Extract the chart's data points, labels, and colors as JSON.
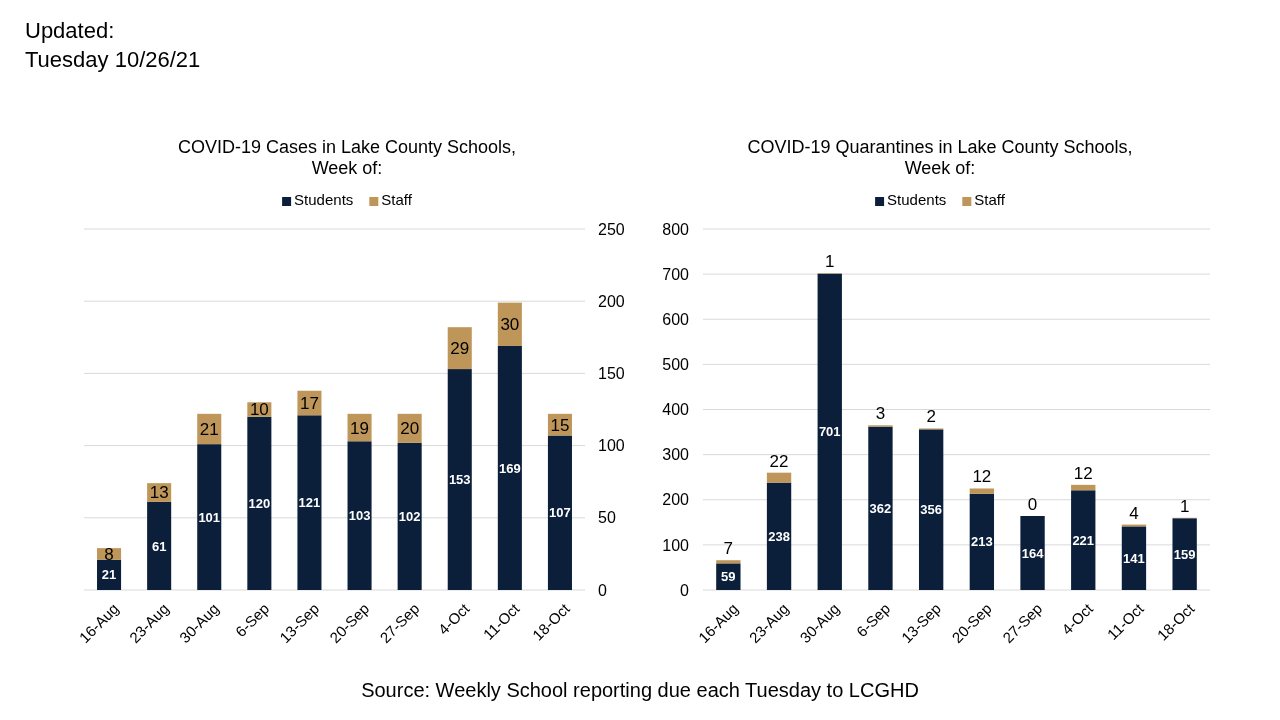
{
  "chart_data": [
    {
      "type": "bar",
      "stacked": true,
      "title": "COVID-19 Cases in Lake County Schools,\nWeek of:",
      "categories": [
        "16-Aug",
        "23-Aug",
        "30-Aug",
        "6-Sep",
        "13-Sep",
        "20-Sep",
        "27-Sep",
        "4-Oct",
        "11-Oct",
        "18-Oct"
      ],
      "series": [
        {
          "name": "Students",
          "color": "#0b1f3b",
          "axis": "y2",
          "values": [
            21,
            61,
            101,
            120,
            121,
            103,
            102,
            153,
            169,
            107
          ]
        },
        {
          "name": "Staff",
          "color": "#bf9659",
          "axis": "y2",
          "values": [
            8,
            13,
            21,
            10,
            17,
            19,
            20,
            29,
            30,
            15
          ]
        }
      ],
      "y2lim": [
        0,
        250
      ],
      "y2ticks": [
        0,
        50,
        100,
        150,
        200,
        250
      ],
      "grid": "y",
      "legend": "top",
      "data_labels": true,
      "annotations": [
        "Updated:\nTuesday 10/26/21",
        "Source: Weekly School reporting due each Tuesday to LCGHD"
      ]
    },
    {
      "type": "bar",
      "stacked": true,
      "title": "COVID-19 Quarantines in Lake County Schools,\nWeek of:",
      "categories": [
        "16-Aug",
        "23-Aug",
        "30-Aug",
        "6-Sep",
        "13-Sep",
        "20-Sep",
        "27-Sep",
        "4-Oct",
        "11-Oct",
        "18-Oct"
      ],
      "series": [
        {
          "name": "Students",
          "color": "#0b1f3b",
          "values": [
            59,
            238,
            701,
            362,
            356,
            213,
            164,
            221,
            141,
            159
          ]
        },
        {
          "name": "Staff",
          "color": "#bf9659",
          "values": [
            7,
            22,
            1,
            3,
            2,
            12,
            0,
            12,
            4,
            1
          ]
        }
      ],
      "ylim": [
        0,
        800
      ],
      "yticks": [
        0,
        100,
        200,
        300,
        400,
        500,
        600,
        700,
        800
      ],
      "grid": "y",
      "legend": "top",
      "data_labels": true
    }
  ]
}
